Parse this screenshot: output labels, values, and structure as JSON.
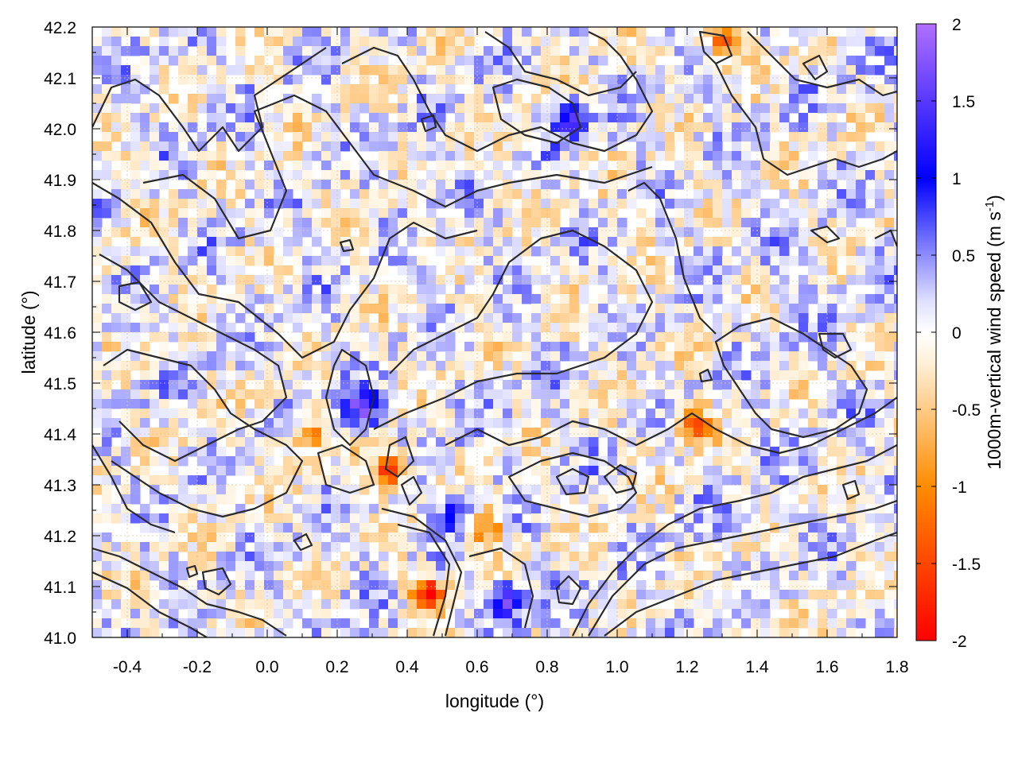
{
  "chart_data": {
    "type": "heatmap",
    "title": "",
    "xlabel": "longitude (°)",
    "ylabel": "latitude (°)",
    "colorbar_label": "1000m-vertical wind speed (m s",
    "colorbar_label_sup": "-1",
    "colorbar_label_close": ")",
    "xlim": [
      -0.5,
      1.8
    ],
    "ylim": [
      41.0,
      42.2
    ],
    "clim": [
      -2,
      2
    ],
    "xticks": [
      "-0.4",
      "-0.2",
      "0.0",
      "0.2",
      "0.4",
      "0.6",
      "0.8",
      "1.0",
      "1.2",
      "1.4",
      "1.6",
      "1.8"
    ],
    "xtick_values": [
      -0.4,
      -0.2,
      0.0,
      0.2,
      0.4,
      0.6,
      0.8,
      1.0,
      1.2,
      1.4,
      1.6,
      1.8
    ],
    "yticks": [
      "41.0",
      "41.1",
      "41.2",
      "41.3",
      "41.4",
      "41.5",
      "41.6",
      "41.7",
      "41.8",
      "41.9",
      "42.0",
      "42.1",
      "42.2"
    ],
    "ytick_values": [
      41.0,
      41.1,
      41.2,
      41.3,
      41.4,
      41.5,
      41.6,
      41.7,
      41.8,
      41.9,
      42.0,
      42.1,
      42.2
    ],
    "cbticks": [
      "-2",
      "-1.5",
      "-1",
      "-0.5",
      "0",
      "0.5",
      "1",
      "1.5",
      "2"
    ],
    "cbtick_values": [
      -2,
      -1.5,
      -1,
      -0.5,
      0,
      0.5,
      1,
      1.5,
      2
    ],
    "colormap": [
      "#ff0000",
      "#ff8000",
      "#ffffff",
      "#0000ff",
      "#b070ff"
    ],
    "grid": true,
    "contour_color": "#2a2a2a",
    "strong_features": [
      {
        "lon": 0.35,
        "lat": 41.33,
        "value": -1.8
      },
      {
        "lon": 0.27,
        "lat": 41.45,
        "value": 1.5
      },
      {
        "lon": 0.46,
        "lat": 41.09,
        "value": -1.6
      },
      {
        "lon": 0.68,
        "lat": 41.07,
        "value": 1.6
      },
      {
        "lon": 1.22,
        "lat": 41.42,
        "value": -1.4
      },
      {
        "lon": 1.3,
        "lat": 42.18,
        "value": -1.2
      },
      {
        "lon": 0.86,
        "lat": 42.02,
        "value": 1.3
      },
      {
        "lon": 0.55,
        "lat": 41.25,
        "value": 1.2
      },
      {
        "lon": 0.12,
        "lat": 41.4,
        "value": -1.0
      },
      {
        "lon": 0.62,
        "lat": 41.22,
        "value": -1.3
      }
    ]
  }
}
